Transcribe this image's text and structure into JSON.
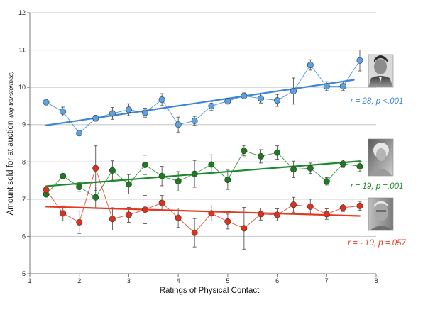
{
  "chart_data": {
    "type": "line",
    "xlabel": "Ratings of Physical Contact",
    "ylabel": "Amount sold for at auction",
    "ylabel_note": "(log-transformed)",
    "xlim": [
      1,
      8
    ],
    "ylim": [
      5,
      12
    ],
    "x_ticks": [
      1,
      2,
      3,
      4,
      5,
      6,
      7,
      8
    ],
    "y_ticks": [
      5,
      6,
      7,
      8,
      9,
      10,
      11,
      12
    ],
    "grid": "horizontal",
    "series": [
      {
        "key": "blue",
        "color": "#3d85d8",
        "marker_color": "#5aa2e8",
        "annotation": {
          "r": "r =.28, ",
          "p": "p <.001"
        },
        "points": [
          {
            "x": 1.33,
            "y": 9.6,
            "err": 0
          },
          {
            "x": 1.67,
            "y": 9.35,
            "err": 0.12
          },
          {
            "x": 2.0,
            "y": 8.77,
            "err": 0
          },
          {
            "x": 2.33,
            "y": 9.17,
            "err": 0.08
          },
          {
            "x": 2.67,
            "y": 9.3,
            "err": 0.16
          },
          {
            "x": 3.0,
            "y": 9.4,
            "err": 0.16
          },
          {
            "x": 3.33,
            "y": 9.32,
            "err": 0.12
          },
          {
            "x": 3.67,
            "y": 9.67,
            "err": 0.16
          },
          {
            "x": 4.0,
            "y": 9.0,
            "err": 0.2
          },
          {
            "x": 4.33,
            "y": 9.1,
            "err": 0.12
          },
          {
            "x": 4.67,
            "y": 9.5,
            "err": 0.12
          },
          {
            "x": 5.0,
            "y": 9.63,
            "err": 0.08
          },
          {
            "x": 5.33,
            "y": 9.77,
            "err": 0.08
          },
          {
            "x": 5.67,
            "y": 9.7,
            "err": 0.12
          },
          {
            "x": 6.0,
            "y": 9.65,
            "err": 0.16
          },
          {
            "x": 6.33,
            "y": 9.9,
            "err": 0.35
          },
          {
            "x": 6.67,
            "y": 10.6,
            "err": 0.14
          },
          {
            "x": 7.0,
            "y": 10.03,
            "err": 0.12
          },
          {
            "x": 7.33,
            "y": 10.03,
            "err": 0.12
          },
          {
            "x": 7.67,
            "y": 10.72,
            "err": 0.28
          }
        ],
        "trend": [
          [
            1.33,
            8.98
          ],
          [
            7.55,
            10.2
          ]
        ]
      },
      {
        "key": "green",
        "color": "#1e8a2e",
        "marker_color": "#1f7a1f",
        "annotation": {
          "r": "r =.19, ",
          "p": "p =.001"
        },
        "points": [
          {
            "x": 1.33,
            "y": 7.13,
            "err": 0
          },
          {
            "x": 1.67,
            "y": 7.62,
            "err": 0
          },
          {
            "x": 2.0,
            "y": 7.33,
            "err": 0.12
          },
          {
            "x": 2.33,
            "y": 7.05,
            "err": 0.28
          },
          {
            "x": 2.67,
            "y": 7.77,
            "err": 0.26
          },
          {
            "x": 3.0,
            "y": 7.4,
            "err": 0.26
          },
          {
            "x": 3.33,
            "y": 7.92,
            "err": 0.26
          },
          {
            "x": 3.67,
            "y": 7.62,
            "err": 0.26
          },
          {
            "x": 4.0,
            "y": 7.48,
            "err": 0.26
          },
          {
            "x": 4.33,
            "y": 7.68,
            "err": 0.36
          },
          {
            "x": 4.67,
            "y": 7.93,
            "err": 0.26
          },
          {
            "x": 5.0,
            "y": 7.52,
            "err": 0.26
          },
          {
            "x": 5.33,
            "y": 8.3,
            "err": 0.14
          },
          {
            "x": 5.67,
            "y": 8.15,
            "err": 0.18
          },
          {
            "x": 6.0,
            "y": 8.25,
            "err": 0.18
          },
          {
            "x": 6.33,
            "y": 7.8,
            "err": 0.22
          },
          {
            "x": 6.67,
            "y": 7.83,
            "err": 0.14
          },
          {
            "x": 7.0,
            "y": 7.48,
            "err": 0.1
          },
          {
            "x": 7.33,
            "y": 7.95,
            "err": 0.1
          },
          {
            "x": 7.67,
            "y": 7.88,
            "err": 0.14
          }
        ],
        "trend": [
          [
            1.33,
            7.35
          ],
          [
            7.67,
            8.02
          ]
        ]
      },
      {
        "key": "red",
        "color": "#e23a24",
        "marker_color": "#e0301c",
        "annotation": {
          "r": "r = -.10, ",
          "p": "p =.057"
        },
        "points": [
          {
            "x": 1.33,
            "y": 7.25,
            "err": 0
          },
          {
            "x": 1.67,
            "y": 6.62,
            "err": 0.2
          },
          {
            "x": 2.0,
            "y": 6.38,
            "err": 0.3
          },
          {
            "x": 2.33,
            "y": 7.83,
            "err": 0.6
          },
          {
            "x": 2.67,
            "y": 6.47,
            "err": 0.3
          },
          {
            "x": 3.0,
            "y": 6.58,
            "err": 0.2
          },
          {
            "x": 3.33,
            "y": 6.72,
            "err": 0.38
          },
          {
            "x": 3.67,
            "y": 6.9,
            "err": 0.2
          },
          {
            "x": 4.0,
            "y": 6.5,
            "err": 0.26
          },
          {
            "x": 4.33,
            "y": 6.1,
            "err": 0.38
          },
          {
            "x": 4.67,
            "y": 6.62,
            "err": 0.2
          },
          {
            "x": 5.0,
            "y": 6.4,
            "err": 0.2
          },
          {
            "x": 5.33,
            "y": 6.22,
            "err": 0.56
          },
          {
            "x": 5.67,
            "y": 6.6,
            "err": 0.16
          },
          {
            "x": 6.0,
            "y": 6.58,
            "err": 0.16
          },
          {
            "x": 6.33,
            "y": 6.85,
            "err": 0.2
          },
          {
            "x": 6.67,
            "y": 6.8,
            "err": 0.2
          },
          {
            "x": 7.0,
            "y": 6.6,
            "err": 0.14
          },
          {
            "x": 7.33,
            "y": 6.77,
            "err": 0.1
          },
          {
            "x": 7.67,
            "y": 6.82,
            "err": 0.12
          }
        ],
        "trend": [
          [
            1.33,
            6.8
          ],
          [
            7.67,
            6.55
          ]
        ]
      }
    ]
  },
  "photos": [
    {
      "name": "blue-series-portrait",
      "label": "portrait photo (man, dark suit)"
    },
    {
      "name": "green-series-portrait",
      "label": "portrait photo (woman, light hair)"
    },
    {
      "name": "red-series-portrait",
      "label": "portrait photo (man, older, glasses)"
    }
  ]
}
